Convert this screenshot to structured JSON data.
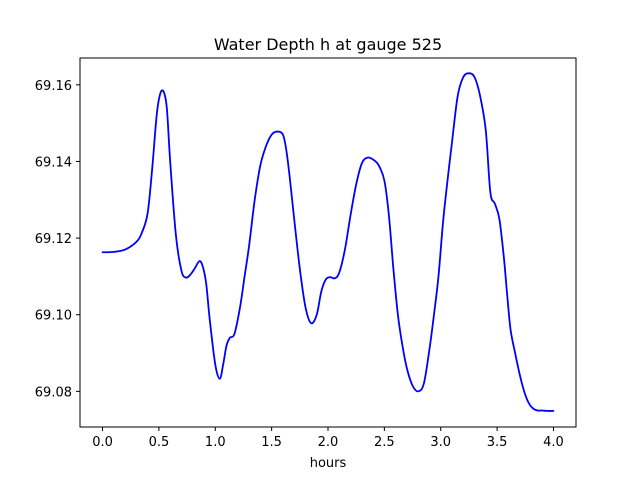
{
  "chart_data": {
    "type": "line",
    "title": "Water Depth h at gauge 525",
    "xlabel": "hours",
    "ylabel": "",
    "xlim": [
      -0.2,
      4.2
    ],
    "ylim": [
      69.0707,
      69.167
    ],
    "x_ticks": [
      0.0,
      0.5,
      1.0,
      1.5,
      2.0,
      2.5,
      3.0,
      3.5,
      4.0
    ],
    "x_tick_labels": [
      "0.0",
      "0.5",
      "1.0",
      "1.5",
      "2.0",
      "2.5",
      "3.0",
      "3.5",
      "4.0"
    ],
    "y_ticks": [
      69.08,
      69.1,
      69.12,
      69.14,
      69.16
    ],
    "y_tick_labels": [
      "69.08",
      "69.10",
      "69.12",
      "69.14",
      "69.16"
    ],
    "grid": false,
    "series": [
      {
        "color": "#0000ff",
        "x": [
          0.0,
          0.1,
          0.2,
          0.3,
          0.35,
          0.4,
          0.44,
          0.48,
          0.51,
          0.54,
          0.57,
          0.6,
          0.65,
          0.7,
          0.74,
          0.78,
          0.82,
          0.86,
          0.89,
          0.92,
          0.95,
          1.0,
          1.04,
          1.07,
          1.1,
          1.13,
          1.17,
          1.22,
          1.26,
          1.3,
          1.35,
          1.4,
          1.45,
          1.5,
          1.55,
          1.6,
          1.63,
          1.66,
          1.7,
          1.75,
          1.8,
          1.85,
          1.9,
          1.94,
          1.98,
          2.02,
          2.06,
          2.1,
          2.15,
          2.2,
          2.25,
          2.3,
          2.35,
          2.4,
          2.45,
          2.5,
          2.54,
          2.58,
          2.62,
          2.66,
          2.7,
          2.75,
          2.8,
          2.85,
          2.9,
          2.94,
          2.98,
          3.02,
          3.06,
          3.1,
          3.15,
          3.2,
          3.25,
          3.3,
          3.35,
          3.4,
          3.44,
          3.48,
          3.52,
          3.56,
          3.59,
          3.62,
          3.66,
          3.7,
          3.74,
          3.78,
          3.82,
          3.86,
          3.9,
          3.94,
          4.0
        ],
        "y": [
          69.1163,
          69.1164,
          69.117,
          69.119,
          69.1215,
          69.1265,
          69.138,
          69.152,
          69.1575,
          69.1583,
          69.154,
          69.14,
          69.121,
          69.1115,
          69.1097,
          69.1105,
          69.1122,
          69.114,
          69.1125,
          69.108,
          69.099,
          69.087,
          69.0833,
          69.087,
          69.092,
          69.094,
          69.095,
          69.102,
          69.11,
          69.118,
          69.13,
          69.139,
          69.144,
          69.147,
          69.1478,
          69.147,
          69.143,
          69.136,
          69.125,
          69.112,
          69.102,
          69.0978,
          69.1,
          69.106,
          69.1092,
          69.1098,
          69.1095,
          69.111,
          69.117,
          69.126,
          69.134,
          69.1395,
          69.141,
          69.1405,
          69.139,
          69.135,
          69.126,
          69.112,
          69.1,
          69.092,
          69.086,
          69.0815,
          69.08,
          69.082,
          69.091,
          69.1,
          69.11,
          69.124,
          69.135,
          69.145,
          69.157,
          69.162,
          69.163,
          69.162,
          69.157,
          69.148,
          69.132,
          69.129,
          69.125,
          69.115,
          69.105,
          69.096,
          69.09,
          69.0845,
          69.08,
          69.077,
          69.0755,
          69.075,
          69.075,
          69.0749,
          69.0749
        ]
      }
    ]
  }
}
